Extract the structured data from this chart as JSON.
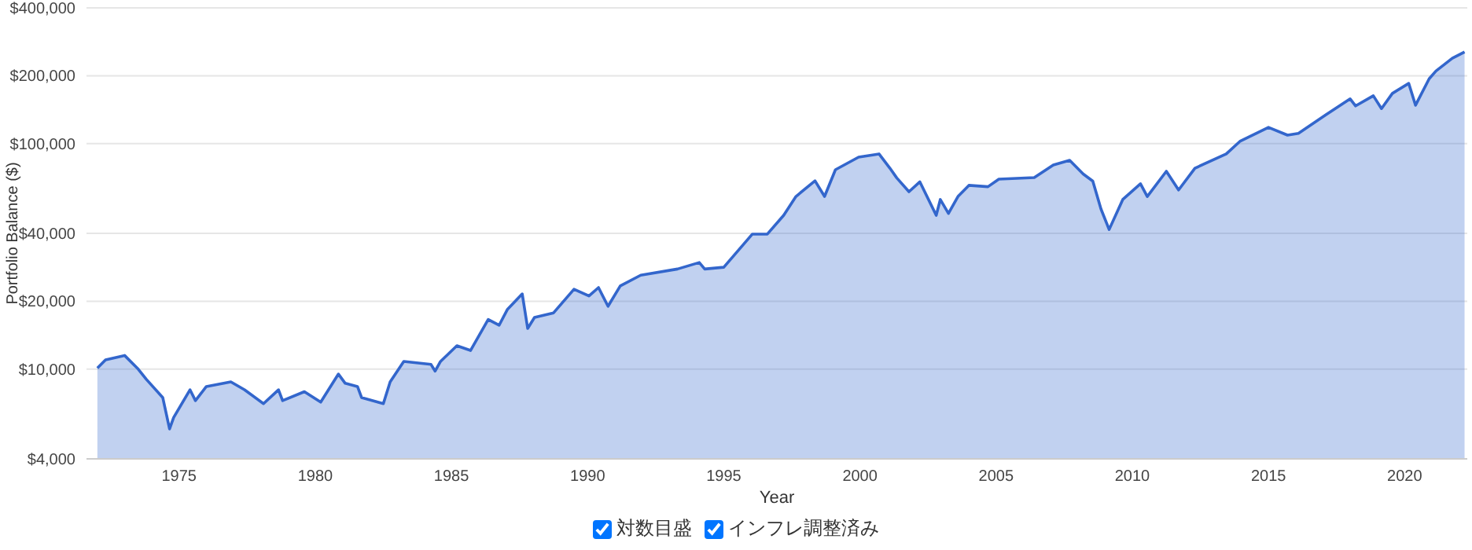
{
  "chart_data": {
    "type": "area",
    "xlabel": "Year",
    "ylabel": "Portfolio Balance ($)",
    "x": [
      1972.0,
      1972.3,
      1973.0,
      1973.5,
      1973.8,
      1974.4,
      1974.65,
      1974.8,
      1975.4,
      1975.6,
      1976.0,
      1976.9,
      1977.4,
      1978.1,
      1978.65,
      1978.8,
      1979.6,
      1980.2,
      1980.85,
      1981.1,
      1981.55,
      1981.7,
      1982.5,
      1982.75,
      1983.25,
      1984.25,
      1984.4,
      1984.6,
      1985.2,
      1985.7,
      1986.35,
      1986.75,
      1987.05,
      1987.6,
      1987.8,
      1988.05,
      1988.75,
      1989.5,
      1990.05,
      1990.4,
      1990.75,
      1991.2,
      1991.95,
      1993.3,
      1994.1,
      1994.3,
      1995.0,
      1996.05,
      1996.6,
      1997.2,
      1997.65,
      1998.35,
      1998.7,
      1999.1,
      1999.95,
      2000.7,
      2001.1,
      2001.35,
      2001.8,
      2002.2,
      2002.8,
      2002.95,
      2003.25,
      2003.6,
      2004.0,
      2004.7,
      2005.1,
      2006.4,
      2007.1,
      2007.7,
      2008.2,
      2008.55,
      2008.85,
      2009.15,
      2009.65,
      2010.3,
      2010.55,
      2011.25,
      2011.7,
      2012.3,
      2013.45,
      2013.95,
      2015.0,
      2015.7,
      2016.1,
      2017.1,
      2018.0,
      2018.2,
      2018.85,
      2019.15,
      2019.55,
      2020.15,
      2020.4,
      2020.9,
      2021.15,
      2021.75,
      2022.2
    ],
    "series": [
      {
        "color": "#3366cc",
        "values": [
          10100,
          11000,
          11500,
          10000,
          9000,
          7480,
          5430,
          6100,
          8100,
          7250,
          8370,
          8780,
          8100,
          7030,
          8100,
          7250,
          7940,
          7140,
          9510,
          8650,
          8370,
          7480,
          7030,
          8780,
          10820,
          10490,
          9800,
          10820,
          12700,
          12100,
          16600,
          15650,
          18360,
          21550,
          15150,
          16950,
          17770,
          22620,
          21100,
          23000,
          19000,
          23400,
          26100,
          27800,
          29700,
          27800,
          28300,
          39700,
          39700,
          48100,
          58300,
          68400,
          58300,
          76600,
          87100,
          90000,
          77800,
          70500,
          61200,
          67700,
          48100,
          56500,
          49000,
          58300,
          65300,
          64400,
          69600,
          70700,
          80400,
          84400,
          73300,
          68200,
          51300,
          41600,
          56500,
          66400,
          58300,
          75400,
          62300,
          77800,
          90000,
          102300,
          118000,
          109000,
          111000,
          134000,
          158000,
          147000,
          163000,
          143000,
          167000,
          185000,
          148000,
          194000,
          210000,
          239000,
          255000
        ]
      }
    ],
    "log": "y",
    "grid": "y",
    "xlim": [
      1971.6,
      2022.3
    ],
    "xticks": [
      1975,
      1980,
      1985,
      1990,
      1995,
      2000,
      2005,
      2010,
      2015,
      2020
    ],
    "ylim": [
      4000,
      400000
    ],
    "yticks": [
      {
        "value": 4000,
        "label": "$4,000"
      },
      {
        "value": 10000,
        "label": "$10,000"
      },
      {
        "value": 20000,
        "label": "$20,000"
      },
      {
        "value": 40000,
        "label": "$40,000"
      },
      {
        "value": 100000,
        "label": "$100,000"
      },
      {
        "value": 200000,
        "label": "$200,000"
      },
      {
        "value": 400000,
        "label": "$400,000"
      }
    ],
    "annotations": [
      "対数目盛",
      "インフレ調整済み"
    ]
  }
}
